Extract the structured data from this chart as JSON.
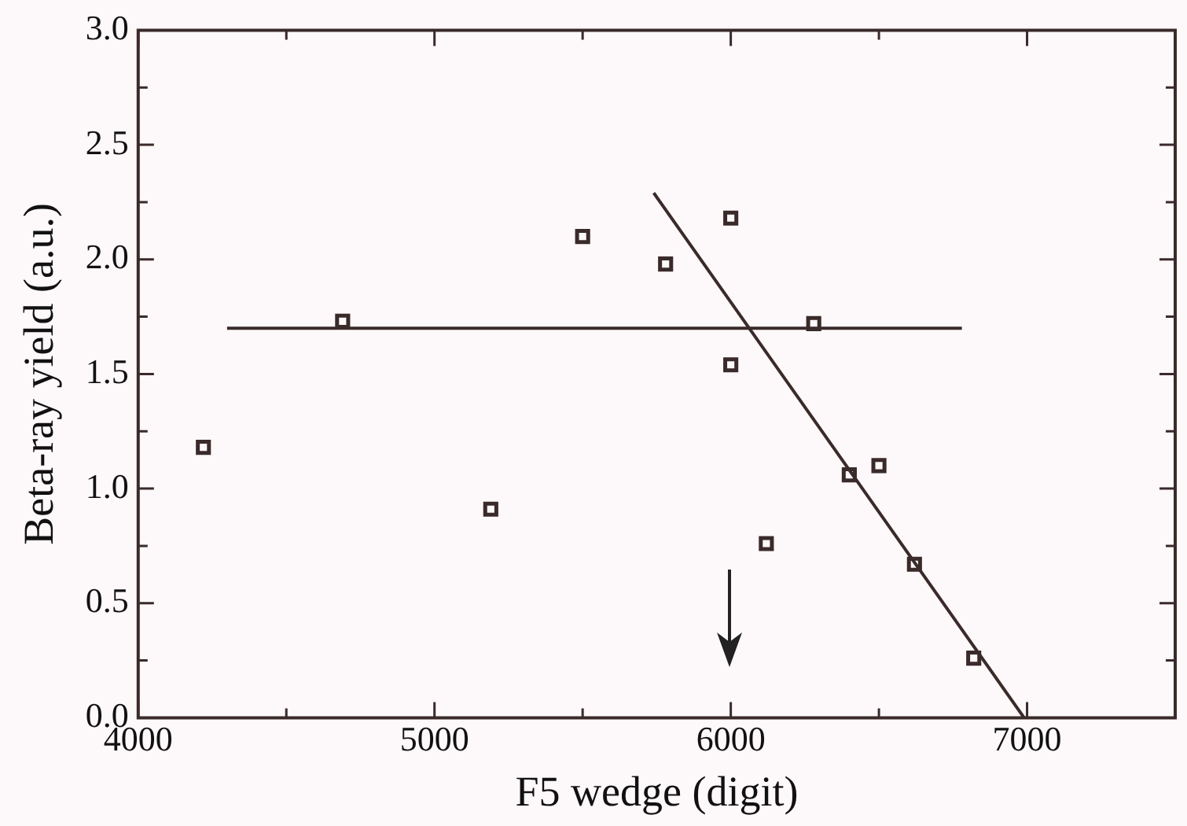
{
  "chart_data": {
    "type": "scatter",
    "xlabel": "F5 wedge (digit)",
    "ylabel": "Beta-ray yield (a.u.)",
    "xlim": [
      4000,
      7500
    ],
    "ylim": [
      0,
      3
    ],
    "xticks": [
      4000,
      {
        "value": 4500,
        "label": null
      },
      5000,
      {
        "value": 5500,
        "label": null
      },
      6000,
      {
        "value": 6500,
        "label": null
      },
      7000
    ],
    "yticks": [
      {
        "value": 0,
        "label": "0.0"
      },
      {
        "value": 0.25,
        "label": null
      },
      {
        "value": 0.5,
        "label": "0.5"
      },
      {
        "value": 0.75,
        "label": null
      },
      {
        "value": 1,
        "label": "1.0"
      },
      {
        "value": 1.25,
        "label": null
      },
      {
        "value": 1.5,
        "label": "1.5"
      },
      {
        "value": 1.75,
        "label": null
      },
      {
        "value": 2,
        "label": "2.0"
      },
      {
        "value": 2.25,
        "label": null
      },
      {
        "value": 2.5,
        "label": "2.5"
      },
      {
        "value": 2.75,
        "label": null
      },
      {
        "value": 3,
        "label": "3.0"
      }
    ],
    "grid": false,
    "legend": false,
    "series": [
      {
        "type": "scatter",
        "marker": "square",
        "color": "#3a2a2a",
        "x": [
          4220,
          4690,
          5190,
          5500,
          5780,
          6000,
          6000,
          6120,
          6280,
          6400,
          6500,
          6620,
          6820
        ],
        "values": [
          1.18,
          1.73,
          0.91,
          2.1,
          1.98,
          2.18,
          1.54,
          0.76,
          1.72,
          1.06,
          1.1,
          0.67,
          0.26
        ]
      },
      {
        "type": "line",
        "marker": "none",
        "color": "#3a2a2a",
        "x": [
          4300,
          6780
        ],
        "values": [
          1.7,
          1.7
        ]
      },
      {
        "type": "line",
        "marker": "none",
        "color": "#3a2a2a",
        "x": [
          5740,
          6990
        ],
        "values": [
          2.29,
          0
        ]
      }
    ]
  }
}
